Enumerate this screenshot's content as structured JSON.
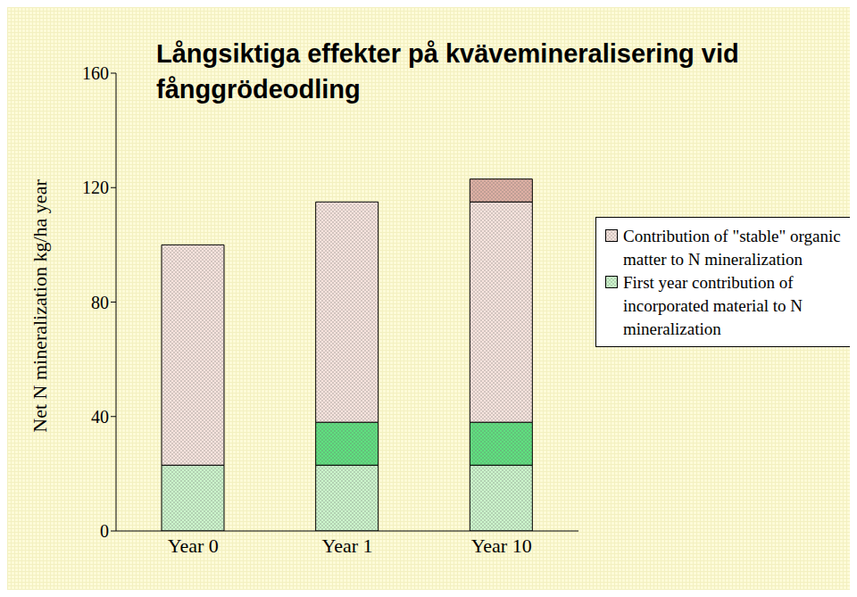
{
  "chart_data": {
    "type": "bar",
    "title": "Långsiktiga effekter på kvävemineralisering vid fånggrödeodling",
    "y_label": "Net N mineralization kg/ha year",
    "categories": [
      "Year 0",
      "Year 1",
      "Year 10"
    ],
    "stacked": true,
    "ylim": [
      0,
      160
    ],
    "yticks": [
      0,
      40,
      80,
      120,
      160
    ],
    "grid": false,
    "legend": "right",
    "series": [
      {
        "name": "First year contribution of incorporated material to N mineralization",
        "color": "#ccf5cc",
        "values": [
          23,
          23,
          23
        ]
      },
      {
        "color": "#5fe07f",
        "values": [
          null,
          15,
          15
        ]
      },
      {
        "name": "Contribution of \"stable\" organic matter to N mineralization",
        "color": "#f7e4de",
        "values": [
          77,
          77,
          77
        ]
      },
      {
        "color": "#deb0a4",
        "values": [
          null,
          null,
          8
        ]
      }
    ]
  }
}
